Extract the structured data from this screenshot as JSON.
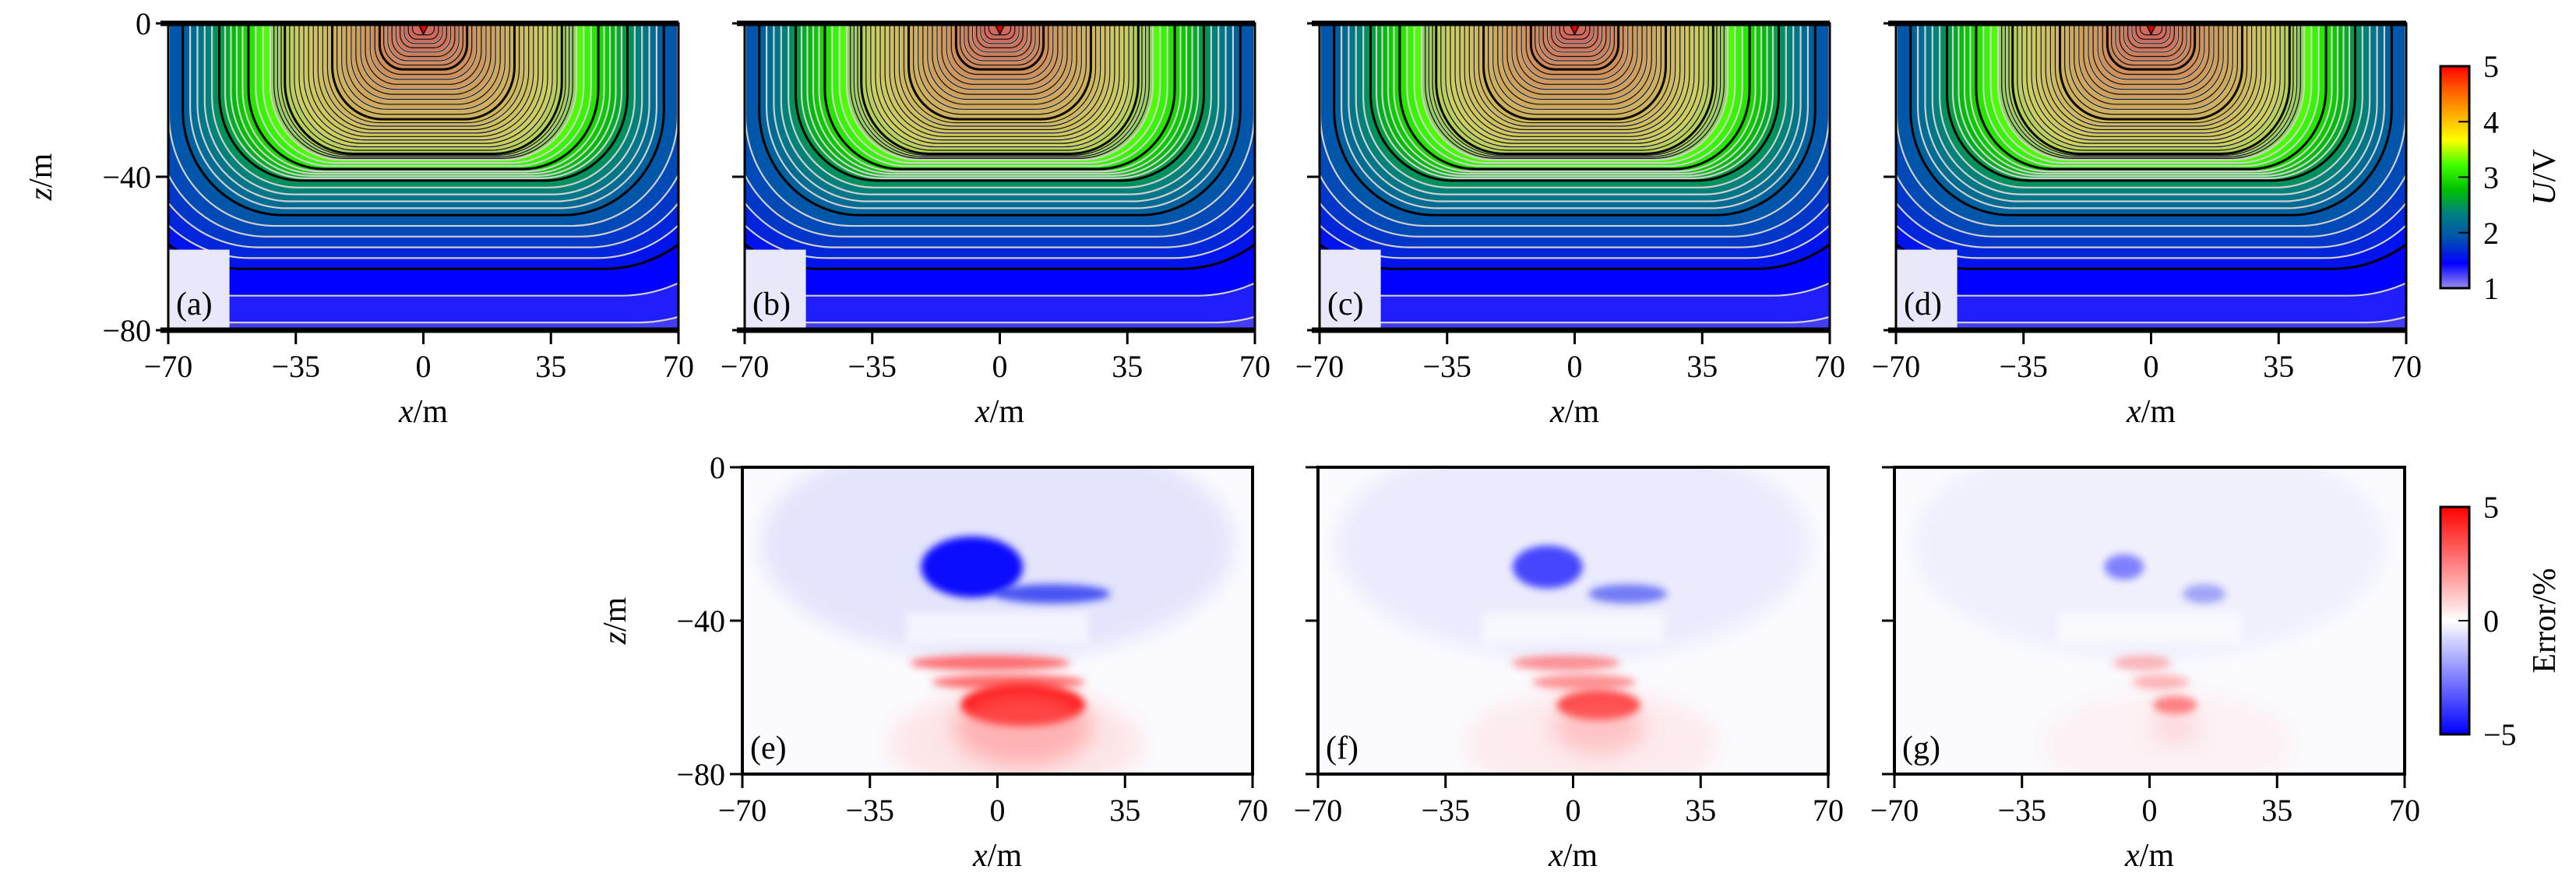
{
  "chart_data": [
    {
      "type": "heatmap",
      "panel_label": "(a)",
      "quantity": "U/V",
      "xlabel": "x/m",
      "ylabel": "z/m",
      "xlim": [
        -70,
        70
      ],
      "ylim": [
        -80,
        0
      ],
      "xticks": [
        "−70",
        "−35",
        "0",
        "35",
        "70"
      ],
      "yticks": [
        "0",
        "−40",
        "−80"
      ],
      "show_ytick_labels": true,
      "contours": true
    },
    {
      "type": "heatmap",
      "panel_label": "(b)",
      "quantity": "U/V",
      "xlabel": "x/m",
      "ylabel": "",
      "xlim": [
        -70,
        70
      ],
      "ylim": [
        -80,
        0
      ],
      "xticks": [
        "−70",
        "−35",
        "0",
        "35",
        "70"
      ],
      "yticks": [
        "0",
        "−40",
        "−80"
      ],
      "show_ytick_labels": false,
      "contours": true
    },
    {
      "type": "heatmap",
      "panel_label": "(c)",
      "quantity": "U/V",
      "xlabel": "x/m",
      "ylabel": "",
      "xlim": [
        -70,
        70
      ],
      "ylim": [
        -80,
        0
      ],
      "xticks": [
        "−70",
        "−35",
        "0",
        "35",
        "70"
      ],
      "yticks": [
        "0",
        "−40",
        "−80"
      ],
      "show_ytick_labels": false,
      "contours": true
    },
    {
      "type": "heatmap",
      "panel_label": "(d)",
      "quantity": "U/V",
      "xlabel": "x/m",
      "ylabel": "",
      "xlim": [
        -70,
        70
      ],
      "ylim": [
        -80,
        0
      ],
      "xticks": [
        "−70",
        "−35",
        "0",
        "35",
        "70"
      ],
      "yticks": [
        "0",
        "−40",
        "−80"
      ],
      "show_ytick_labels": false,
      "contours": true
    },
    {
      "type": "heatmap",
      "panel_label": "(e)",
      "quantity": "Error/%",
      "xlabel": "x/m",
      "ylabel": "z/m",
      "xlim": [
        -70,
        70
      ],
      "ylim": [
        -80,
        0
      ],
      "xticks": [
        "−70",
        "−35",
        "0",
        "35",
        "70"
      ],
      "yticks": [
        "0",
        "−40",
        "−80"
      ],
      "show_ytick_labels": true,
      "error_magnitude": "large"
    },
    {
      "type": "heatmap",
      "panel_label": "(f)",
      "quantity": "Error/%",
      "xlabel": "x/m",
      "ylabel": "",
      "xlim": [
        -70,
        70
      ],
      "ylim": [
        -80,
        0
      ],
      "xticks": [
        "−70",
        "−35",
        "0",
        "35",
        "70"
      ],
      "yticks": [
        "0",
        "−40",
        "−80"
      ],
      "show_ytick_labels": false,
      "error_magnitude": "medium"
    },
    {
      "type": "heatmap",
      "panel_label": "(g)",
      "quantity": "Error/%",
      "xlabel": "x/m",
      "ylabel": "",
      "xlim": [
        -70,
        70
      ],
      "ylim": [
        -80,
        0
      ],
      "xticks": [
        "−70",
        "−35",
        "0",
        "35",
        "70"
      ],
      "yticks": [
        "0",
        "−40",
        "−80"
      ],
      "show_ytick_labels": false,
      "error_magnitude": "small"
    }
  ],
  "colorbars": [
    {
      "label": "U/V",
      "range": [
        1,
        5
      ],
      "ticks": [
        "1",
        "2",
        "3",
        "4",
        "5"
      ],
      "colormap": [
        "#9c8cf0",
        "#0000ff",
        "#0050b0",
        "#008080",
        "#00c000",
        "#40ff00",
        "#ffff00",
        "#ffb000",
        "#ff6000",
        "#ff0000"
      ]
    },
    {
      "label": "Error/%",
      "range": [
        -5,
        5
      ],
      "ticks": [
        "−5",
        "0",
        "5"
      ],
      "colormap": [
        "#0000ff",
        "#ffffff",
        "#ff0000"
      ]
    }
  ]
}
